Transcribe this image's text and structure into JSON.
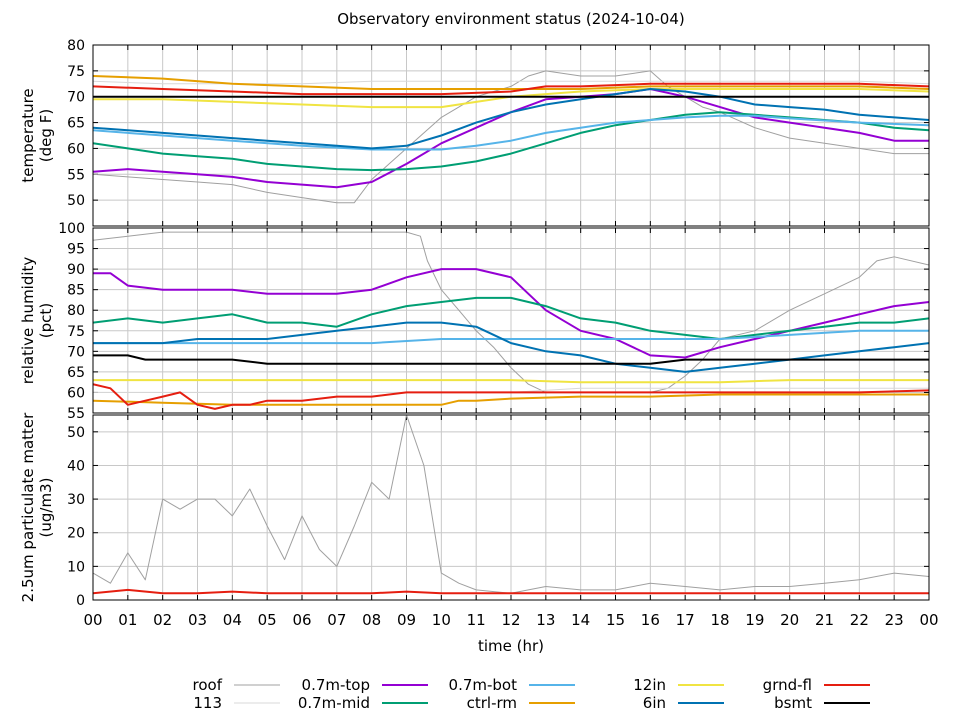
{
  "title": "Observatory environment status (2024-10-04)",
  "xlabel": "time (hr)",
  "x_ticks": [
    "00",
    "01",
    "02",
    "03",
    "04",
    "05",
    "06",
    "07",
    "08",
    "09",
    "10",
    "11",
    "12",
    "13",
    "14",
    "15",
    "16",
    "17",
    "18",
    "19",
    "20",
    "21",
    "22",
    "23",
    "00"
  ],
  "legend": [
    {
      "name": "roof",
      "color": "#a0a0a0"
    },
    {
      "name": "113",
      "color": "#d8d8d8"
    },
    {
      "name": "0.7m-top",
      "color": "#9400d3"
    },
    {
      "name": "0.7m-mid",
      "color": "#009e73"
    },
    {
      "name": "0.7m-bot",
      "color": "#56b4e9"
    },
    {
      "name": "ctrl-rm",
      "color": "#e69f00"
    },
    {
      "name": "12in",
      "color": "#f0e442"
    },
    {
      "name": "6in",
      "color": "#0072b2"
    },
    {
      "name": "grnd-fl",
      "color": "#e51e10"
    },
    {
      "name": "bsmt",
      "color": "#000000"
    }
  ],
  "chart_data": [
    {
      "type": "line",
      "ylabel": [
        "temperature",
        "(deg F)"
      ],
      "xlim": [
        0,
        24
      ],
      "ylim": [
        45,
        80
      ],
      "yticks": [
        50,
        55,
        60,
        65,
        70,
        75,
        80
      ],
      "grid": true,
      "series": [
        {
          "name": "roof",
          "x": [
            0,
            1,
            2,
            3,
            4,
            5,
            6,
            7,
            7.5,
            8,
            8.5,
            9,
            9.5,
            10,
            10.5,
            11,
            11.5,
            12,
            12.5,
            13,
            14,
            15,
            16,
            16.5,
            17,
            17.5,
            18,
            19,
            20,
            21,
            22,
            23,
            24
          ],
          "y": [
            55,
            54.5,
            54,
            53.5,
            53,
            51.5,
            50.5,
            49.5,
            49.5,
            54,
            57,
            60,
            63,
            66,
            68,
            70,
            71,
            72,
            74,
            75,
            74,
            74,
            75,
            72,
            70,
            68,
            67,
            64,
            62,
            61,
            60,
            59,
            59
          ]
        },
        {
          "name": "113",
          "x": [
            0,
            2,
            4,
            6,
            8,
            10,
            12,
            14,
            16,
            18,
            20,
            22,
            24
          ],
          "y": [
            73,
            72.5,
            72.5,
            72.5,
            73,
            73,
            73,
            73,
            73,
            73,
            73,
            73,
            72.5
          ]
        },
        {
          "name": "0.7m-top",
          "x": [
            0,
            1,
            2,
            3,
            4,
            5,
            6,
            7,
            8,
            9,
            10,
            11,
            12,
            13,
            14,
            15,
            16,
            17,
            18,
            19,
            20,
            21,
            22,
            23,
            24
          ],
          "y": [
            55.5,
            56,
            55.5,
            55,
            54.5,
            53.5,
            53,
            52.5,
            53.5,
            57,
            61,
            64,
            67,
            69.5,
            70,
            70.5,
            71.5,
            70,
            68,
            66,
            65,
            64,
            63,
            61.5,
            61.5
          ]
        },
        {
          "name": "0.7m-mid",
          "x": [
            0,
            1,
            2,
            3,
            4,
            5,
            6,
            7,
            8,
            9,
            10,
            11,
            12,
            13,
            14,
            15,
            16,
            17,
            18,
            19,
            20,
            21,
            22,
            23,
            24
          ],
          "y": [
            61,
            60,
            59,
            58.5,
            58,
            57,
            56.5,
            56,
            55.8,
            56,
            56.5,
            57.5,
            59,
            61,
            63,
            64.5,
            65.5,
            66.5,
            67,
            66.5,
            66,
            65.5,
            65,
            64,
            63.5
          ]
        },
        {
          "name": "0.7m-bot",
          "x": [
            0,
            2,
            4,
            6,
            8,
            10,
            11,
            12,
            13,
            14,
            15,
            16,
            17,
            18,
            19,
            20,
            22,
            24
          ],
          "y": [
            63.5,
            62.5,
            61.5,
            60.5,
            59.8,
            59.8,
            60.5,
            61.5,
            63,
            64,
            65,
            65.5,
            66,
            66.3,
            66.3,
            65.8,
            65,
            64.5
          ]
        },
        {
          "name": "ctrl-rm",
          "x": [
            0,
            2,
            4,
            6,
            8,
            10,
            12,
            14,
            16,
            18,
            20,
            22,
            24
          ],
          "y": [
            74,
            73.5,
            72.5,
            72,
            71.5,
            71.5,
            71.5,
            71.5,
            72,
            72,
            72,
            72,
            71.5
          ]
        },
        {
          "name": "12in",
          "x": [
            0,
            2,
            4,
            6,
            8,
            10,
            11,
            12,
            13,
            14,
            16,
            18,
            20,
            22,
            24
          ],
          "y": [
            69.5,
            69.5,
            69,
            68.5,
            68,
            68,
            69,
            70,
            70.5,
            71,
            71.5,
            71.5,
            71.5,
            71.5,
            71
          ]
        },
        {
          "name": "6in",
          "x": [
            0,
            1,
            2,
            3,
            4,
            5,
            6,
            7,
            8,
            9,
            10,
            11,
            12,
            13,
            14,
            15,
            16,
            17,
            18,
            19,
            20,
            21,
            22,
            23,
            24
          ],
          "y": [
            64,
            63.5,
            63,
            62.5,
            62,
            61.5,
            61,
            60.5,
            60,
            60.5,
            62.5,
            65,
            67,
            68.5,
            69.5,
            70.5,
            71.5,
            71,
            70,
            68.5,
            68,
            67.5,
            66.5,
            66,
            65.5
          ]
        },
        {
          "name": "grnd-fl",
          "x": [
            0,
            2,
            4,
            6,
            8,
            10,
            12,
            13,
            14,
            16,
            18,
            20,
            22,
            24
          ],
          "y": [
            72,
            71.5,
            71,
            70.5,
            70.5,
            70.5,
            71,
            72,
            72,
            72.5,
            72.5,
            72.5,
            72.5,
            72
          ]
        },
        {
          "name": "bsmt",
          "x": [
            0,
            2,
            4,
            6,
            8,
            10,
            12,
            14,
            16,
            18,
            20,
            22,
            24
          ],
          "y": [
            70,
            70,
            70,
            70,
            70,
            70,
            70,
            70,
            70,
            70,
            70,
            70,
            70
          ]
        }
      ]
    },
    {
      "type": "line",
      "ylabel": [
        "relative humidity",
        "(pct)"
      ],
      "xlim": [
        0,
        24
      ],
      "ylim": [
        55,
        100
      ],
      "yticks": [
        55,
        60,
        65,
        70,
        75,
        80,
        85,
        90,
        95,
        100
      ],
      "grid": true,
      "series": [
        {
          "name": "roof",
          "x": [
            0,
            1,
            2,
            3,
            4,
            5,
            6,
            7,
            8,
            9,
            9.4,
            9.6,
            10,
            10.5,
            11,
            11.5,
            12,
            12.5,
            13,
            14,
            15,
            16,
            16.5,
            17,
            17.5,
            18,
            19,
            20,
            21,
            22,
            22.5,
            23,
            24
          ],
          "y": [
            97,
            98,
            99,
            99,
            99,
            99,
            99,
            99,
            99,
            99,
            98,
            92,
            85,
            80,
            75,
            71,
            66,
            62,
            60,
            60,
            60,
            60,
            61,
            64,
            68,
            73,
            75,
            80,
            84,
            88,
            92,
            93,
            91
          ]
        },
        {
          "name": "113",
          "x": [
            0,
            2,
            4,
            6,
            8,
            10,
            12,
            14,
            16,
            18,
            20,
            22,
            24
          ],
          "y": [
            60,
            60,
            60,
            60,
            60,
            60,
            60,
            61,
            61,
            61,
            61,
            61,
            61
          ]
        },
        {
          "name": "0.7m-top",
          "x": [
            0,
            0.5,
            1,
            2,
            3,
            4,
            5,
            6,
            7,
            8,
            9,
            10,
            11,
            12,
            12.5,
            13,
            14,
            15,
            16,
            17,
            18,
            19,
            20,
            21,
            22,
            23,
            24
          ],
          "y": [
            89,
            89,
            86,
            85,
            85,
            85,
            84,
            84,
            84,
            85,
            88,
            90,
            90,
            88,
            84,
            80,
            75,
            73,
            69,
            68.5,
            71,
            73,
            75,
            77,
            79,
            81,
            82
          ]
        },
        {
          "name": "0.7m-mid",
          "x": [
            0,
            1,
            2,
            3,
            4,
            5,
            6,
            7,
            8,
            9,
            10,
            11,
            12,
            13,
            14,
            15,
            16,
            17,
            18,
            19,
            20,
            21,
            22,
            23,
            24
          ],
          "y": [
            77,
            78,
            77,
            78,
            79,
            77,
            77,
            76,
            79,
            81,
            82,
            83,
            83,
            81,
            78,
            77,
            75,
            74,
            73,
            74,
            75,
            76,
            77,
            77,
            78
          ]
        },
        {
          "name": "0.7m-bot",
          "x": [
            0,
            2,
            4,
            6,
            8,
            10,
            12,
            14,
            16,
            18,
            20,
            22,
            24
          ],
          "y": [
            72,
            72,
            72,
            72,
            72,
            73,
            73,
            73,
            73,
            73,
            74,
            75,
            75
          ]
        },
        {
          "name": "ctrl-rm",
          "x": [
            0,
            2,
            4,
            6,
            8,
            10,
            10.5,
            11,
            12,
            14,
            16,
            18,
            20,
            22,
            24
          ],
          "y": [
            58,
            57.5,
            57,
            57,
            57,
            57,
            58,
            58,
            58.5,
            59,
            59,
            59.5,
            59.5,
            59.5,
            59.5
          ]
        },
        {
          "name": "12in",
          "x": [
            0,
            2,
            4,
            6,
            8,
            10,
            12,
            14,
            16,
            18,
            20,
            22,
            24
          ],
          "y": [
            63,
            63,
            63,
            63,
            63,
            63,
            63,
            62.5,
            62.5,
            62.5,
            63,
            63,
            63
          ]
        },
        {
          "name": "6in",
          "x": [
            0,
            1,
            2,
            3,
            4,
            5,
            6,
            7,
            8,
            9,
            10,
            11,
            12,
            13,
            14,
            15,
            16,
            17,
            18,
            19,
            20,
            21,
            22,
            23,
            24
          ],
          "y": [
            72,
            72,
            72,
            73,
            73,
            73,
            74,
            75,
            76,
            77,
            77,
            76,
            72,
            70,
            69,
            67,
            66,
            65,
            66,
            67,
            68,
            69,
            70,
            71,
            72
          ]
        },
        {
          "name": "grnd-fl",
          "x": [
            0,
            0.5,
            1,
            1.5,
            2,
            2.5,
            3,
            3.5,
            4,
            4.5,
            5,
            6,
            7,
            8,
            9,
            10,
            11,
            12,
            14,
            16,
            18,
            20,
            22,
            24
          ],
          "y": [
            62,
            61,
            57,
            58,
            59,
            60,
            57,
            56,
            57,
            57,
            58,
            58,
            59,
            59,
            60,
            60,
            60,
            60,
            60,
            60,
            60,
            60,
            60,
            60.5
          ]
        },
        {
          "name": "bsmt",
          "x": [
            0,
            1,
            1.5,
            2,
            4,
            5,
            6,
            8,
            9,
            9.5,
            10,
            12,
            14,
            16,
            17,
            18,
            20,
            22,
            24
          ],
          "y": [
            69,
            69,
            68,
            68,
            68,
            67,
            67,
            67,
            67,
            67,
            67,
            67,
            67,
            67,
            68,
            68,
            68,
            68,
            68
          ]
        }
      ]
    },
    {
      "type": "line",
      "ylabel": [
        "2.5um particulate matter",
        "(ug/m3)"
      ],
      "xlim": [
        0,
        24
      ],
      "ylim": [
        0,
        55
      ],
      "yticks": [
        0,
        10,
        20,
        30,
        40,
        50
      ],
      "grid": true,
      "series": [
        {
          "name": "roof",
          "x": [
            0,
            0.5,
            1,
            1.5,
            2,
            2.5,
            3,
            3.5,
            4,
            4.5,
            5,
            5.5,
            6,
            6.5,
            7,
            7.5,
            8,
            8.5,
            9,
            9.5,
            10,
            10.5,
            11,
            12,
            13,
            14,
            15,
            16,
            17,
            18,
            19,
            20,
            21,
            22,
            23,
            24
          ],
          "y": [
            8,
            5,
            14,
            6,
            30,
            27,
            30,
            30,
            25,
            33,
            22,
            12,
            25,
            15,
            10,
            22,
            35,
            30,
            55,
            40,
            8,
            5,
            3,
            2,
            4,
            3,
            3,
            5,
            4,
            3,
            4,
            4,
            5,
            6,
            8,
            7
          ]
        },
        {
          "name": "grnd-fl",
          "x": [
            0,
            1,
            2,
            3,
            4,
            5,
            6,
            7,
            8,
            9,
            10,
            11,
            12,
            13,
            14,
            15,
            16,
            17,
            18,
            19,
            20,
            21,
            22,
            23,
            24
          ],
          "y": [
            2,
            3,
            2,
            2,
            2.5,
            2,
            2,
            2,
            2,
            2.5,
            2,
            2,
            2,
            2,
            2,
            2,
            2,
            2,
            2,
            2,
            2,
            2,
            2,
            2,
            2
          ]
        }
      ]
    }
  ]
}
